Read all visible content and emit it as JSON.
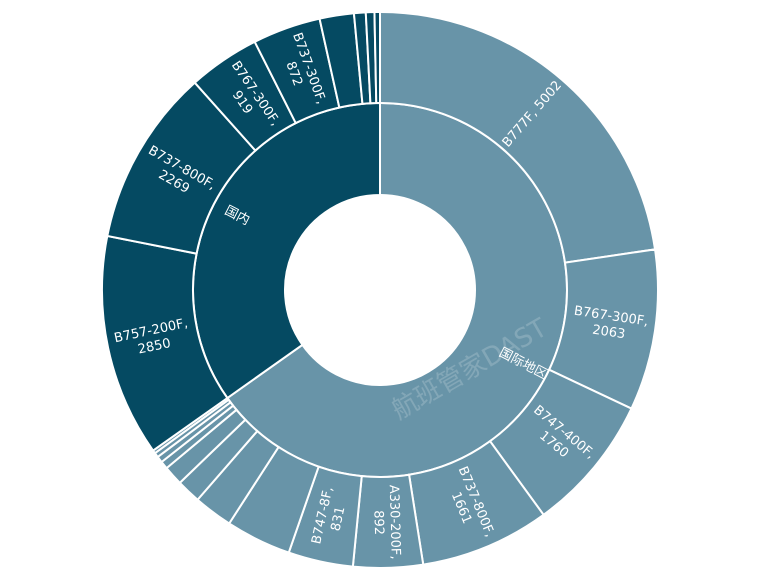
{
  "chart_data": {
    "type": "sunburst",
    "watermark": "航班管家DAST",
    "groups": [
      {
        "name": "国际地区",
        "color": "#6894a8",
        "labels": [
          [
            "B777F, 5002"
          ],
          [
            "B767-300F,",
            "2063"
          ],
          [
            "B747-400F,",
            "1760"
          ],
          [
            "B737-800F,",
            "1661"
          ],
          [
            "A330-200F,",
            "892"
          ],
          [
            "B747-8F,",
            "831"
          ],
          null,
          null,
          null,
          null,
          null,
          null,
          null,
          null
        ],
        "values": [
          5002,
          2063,
          1760,
          1661,
          892,
          831,
          840,
          500,
          310,
          250,
          100,
          80,
          60,
          40
        ]
      },
      {
        "name": "国内",
        "color": "#054a62",
        "labels": [
          [
            "B757-200F,",
            "2850"
          ],
          [
            "B737-800F,",
            "2269"
          ],
          [
            "B767-300F,",
            "919"
          ],
          [
            "B737-300F,",
            "872"
          ],
          null,
          null,
          null,
          null
        ],
        "values": [
          2850,
          2269,
          919,
          872,
          440,
          150,
          110,
          70
        ]
      }
    ]
  }
}
